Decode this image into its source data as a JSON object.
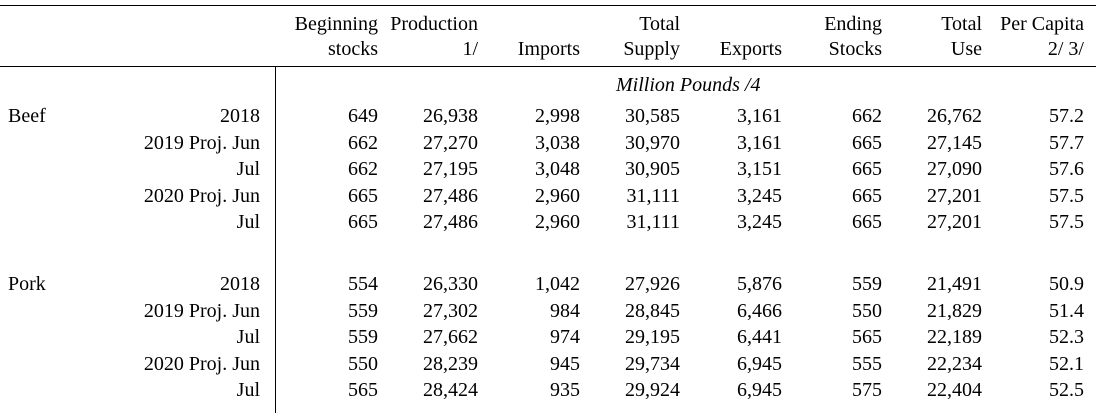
{
  "headers": {
    "c1": [
      "Beginning",
      "stocks"
    ],
    "c2": [
      "Production",
      "1/"
    ],
    "c3": [
      "",
      "Imports"
    ],
    "c4": [
      "Total",
      "Supply"
    ],
    "c5": [
      "",
      "Exports"
    ],
    "c6": [
      "Ending",
      "Stocks"
    ],
    "c7": [
      "Total",
      "Use"
    ],
    "c8": [
      "Per Capita",
      "2/  3/"
    ]
  },
  "units": "Million Pounds /4",
  "sections": [
    {
      "commodity": "Beef",
      "rows": [
        {
          "period": "2018",
          "values": [
            "649",
            "26,938",
            "2,998",
            "30,585",
            "3,161",
            "662",
            "26,762",
            "57.2"
          ]
        },
        {
          "period": "2019 Proj. Jun",
          "values": [
            "662",
            "27,270",
            "3,038",
            "30,970",
            "3,161",
            "665",
            "27,145",
            "57.7"
          ]
        },
        {
          "period": "Jul",
          "values": [
            "662",
            "27,195",
            "3,048",
            "30,905",
            "3,151",
            "665",
            "27,090",
            "57.6"
          ]
        },
        {
          "period": "2020 Proj. Jun",
          "values": [
            "665",
            "27,486",
            "2,960",
            "31,111",
            "3,245",
            "665",
            "27,201",
            "57.5"
          ]
        },
        {
          "period": "Jul",
          "values": [
            "665",
            "27,486",
            "2,960",
            "31,111",
            "3,245",
            "665",
            "27,201",
            "57.5"
          ]
        }
      ]
    },
    {
      "commodity": "Pork",
      "rows": [
        {
          "period": "2018",
          "values": [
            "554",
            "26,330",
            "1,042",
            "27,926",
            "5,876",
            "559",
            "21,491",
            "50.9"
          ]
        },
        {
          "period": "2019 Proj. Jun",
          "values": [
            "559",
            "27,302",
            "984",
            "28,845",
            "6,466",
            "550",
            "21,829",
            "51.4"
          ]
        },
        {
          "period": "Jul",
          "values": [
            "559",
            "27,662",
            "974",
            "29,195",
            "6,441",
            "565",
            "22,189",
            "52.3"
          ]
        },
        {
          "period": "2020 Proj. Jun",
          "values": [
            "550",
            "28,239",
            "945",
            "29,734",
            "6,945",
            "555",
            "22,234",
            "52.1"
          ]
        },
        {
          "period": "Jul",
          "values": [
            "565",
            "28,424",
            "935",
            "29,924",
            "6,945",
            "575",
            "22,404",
            "52.5"
          ]
        }
      ]
    }
  ]
}
